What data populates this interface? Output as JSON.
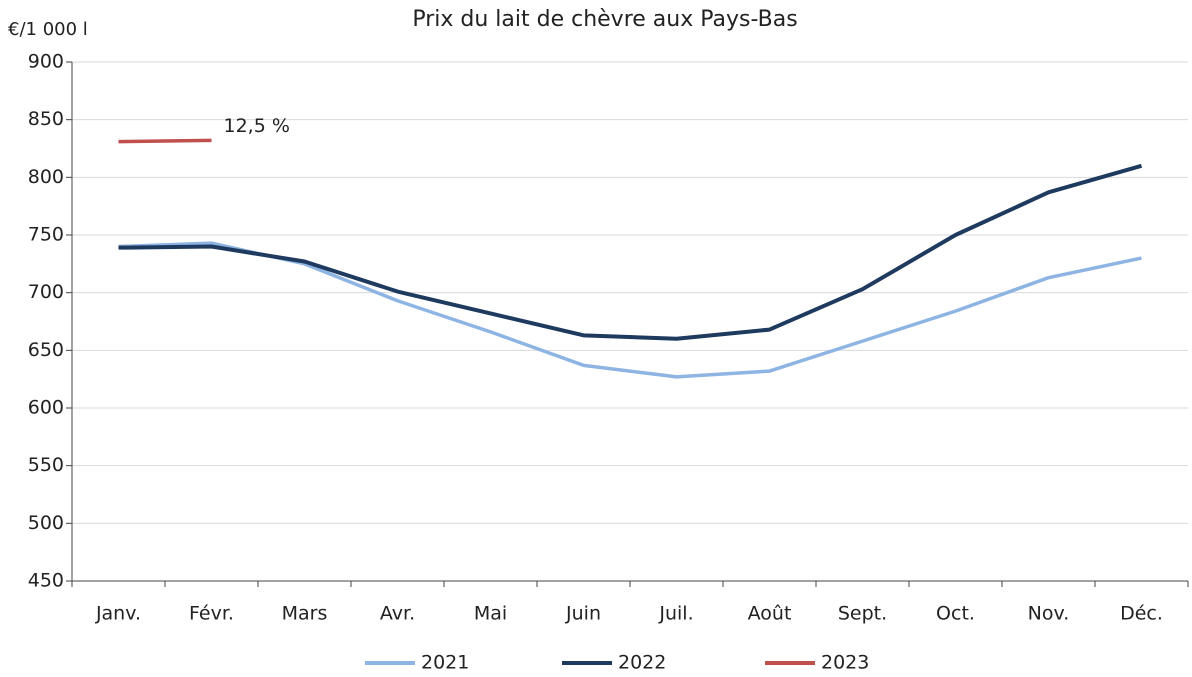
{
  "chart_data": {
    "type": "line",
    "title": "Prix du lait de chèvre aux Pays-Bas",
    "y_label": "€/1 000 l",
    "categories": [
      "Janv.",
      "Févr.",
      "Mars",
      "Avr.",
      "Mai",
      "Juin",
      "Juil.",
      "Août",
      "Sept.",
      "Oct.",
      "Nov.",
      "Déc."
    ],
    "series": [
      {
        "name": "2021",
        "color": "#8eb4e3",
        "values": [
          740,
          743,
          725,
          693,
          666,
          637,
          627,
          632,
          658,
          684,
          713,
          730
        ]
      },
      {
        "name": "2022",
        "color": "#1f3a5f",
        "values": [
          739,
          740,
          727,
          701,
          682,
          663,
          660,
          668,
          703,
          750,
          787,
          810
        ]
      },
      {
        "name": "2023",
        "color": "#c0504d",
        "values": [
          831,
          832,
          null,
          null,
          null,
          null,
          null,
          null,
          null,
          null,
          null,
          null
        ]
      }
    ],
    "annotation": "12,5 %",
    "ylim": [
      450,
      900
    ],
    "yticks": [
      450,
      500,
      550,
      600,
      650,
      700,
      750,
      800,
      850,
      900
    ],
    "grid": true,
    "legend": "bottom"
  }
}
